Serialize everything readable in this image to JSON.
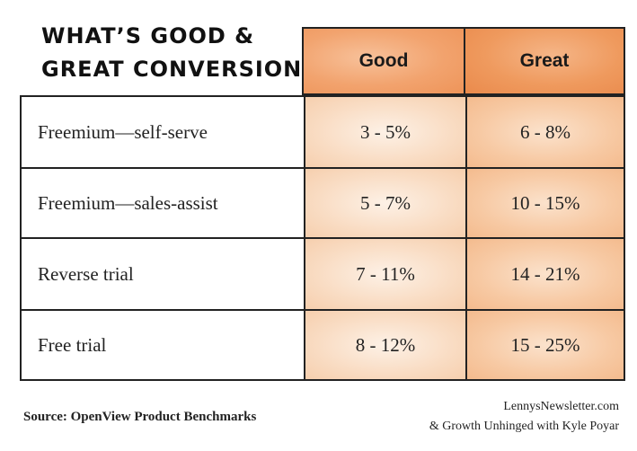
{
  "title": {
    "line1": "WHAT’S GOOD &",
    "line2": "GREAT CONVERSION?"
  },
  "columns": {
    "good": "Good",
    "great": "Great"
  },
  "rows": [
    {
      "label": "Freemium—self-serve",
      "good": "3 - 5%",
      "great": "6 - 8%"
    },
    {
      "label": "Freemium—sales-assist",
      "good": "5 - 7%",
      "great": "10 - 15%"
    },
    {
      "label": "Reverse trial",
      "good": "7 - 11%",
      "great": "14 - 21%"
    },
    {
      "label": "Free trial",
      "good": "8 - 12%",
      "great": "15 - 25%"
    }
  ],
  "footer": {
    "source": "Source: OpenView Product Benchmarks",
    "credit_line1": "LennysNewsletter.com",
    "credit_line2": "& Growth Unhinged with Kyle Poyar"
  },
  "colors": {
    "header_good": "#f2a36e",
    "header_great": "#ef9a5e",
    "cell_good": "#f9dcc3",
    "cell_great": "#f7c9a3"
  }
}
